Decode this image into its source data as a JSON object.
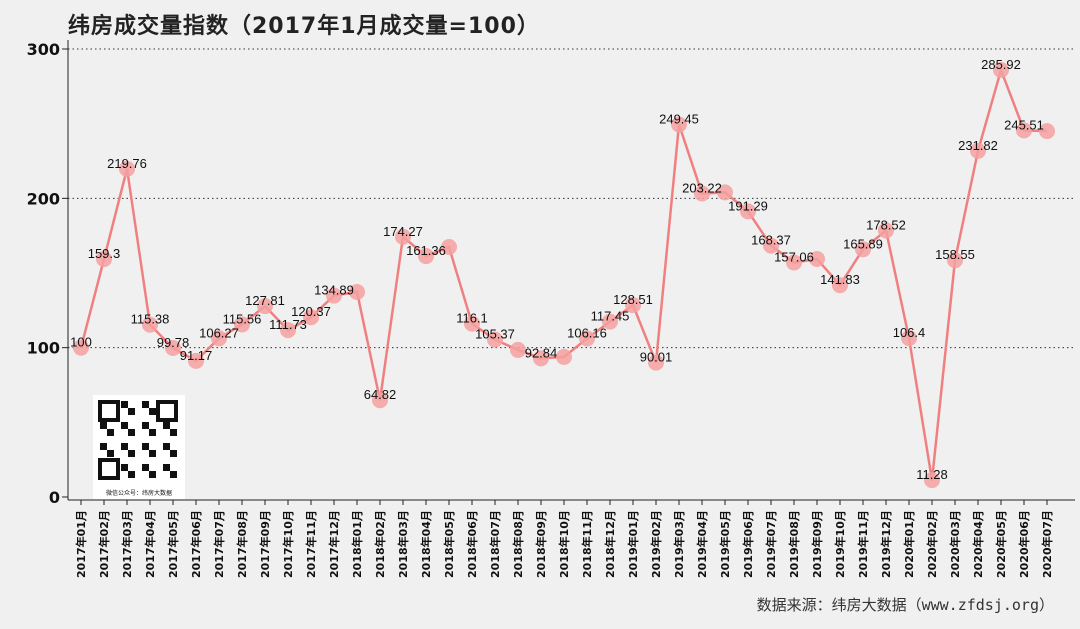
{
  "chart_data": {
    "type": "line",
    "title": "纬房成交量指数（2017年1月成交量=100）",
    "xlabel": "",
    "ylabel": "",
    "ylim": [
      0,
      300
    ],
    "yticks": [
      0,
      100,
      200,
      300
    ],
    "grid": "horizontal dotted",
    "line_color": "#f08080",
    "marker_color": "#f4a0a0",
    "categories": [
      "2017年01月",
      "2017年02月",
      "2017年03月",
      "2017年04月",
      "2017年05月",
      "2017年06月",
      "2017年07月",
      "2017年08月",
      "2017年09月",
      "2017年10月",
      "2017年11月",
      "2017年12月",
      "2018年01月",
      "2018年02月",
      "2018年03月",
      "2018年04月",
      "2018年05月",
      "2018年06月",
      "2018年07月",
      "2018年08月",
      "2018年09月",
      "2018年10月",
      "2018年11月",
      "2018年12月",
      "2019年01月",
      "2019年02月",
      "2019年03月",
      "2019年04月",
      "2019年05月",
      "2019年06月",
      "2019年07月",
      "2019年08月",
      "2019年09月",
      "2019年10月",
      "2019年11月",
      "2019年12月",
      "2020年01月",
      "2020年02月",
      "2020年03月",
      "2020年04月",
      "2020年05月",
      "2020年06月",
      "2020年07月"
    ],
    "values": [
      100,
      159.3,
      219.76,
      115.38,
      99.78,
      91.17,
      106.27,
      115.56,
      127.81,
      111.73,
      120.37,
      134.89,
      137.3,
      64.82,
      174.27,
      161.36,
      167.4,
      116.1,
      105.37,
      98.5,
      92.84,
      93.8,
      106.16,
      117.45,
      128.51,
      90.01,
      249.45,
      203.22,
      204,
      191.29,
      168.37,
      157.06,
      159.4,
      141.83,
      165.89,
      178.52,
      106.4,
      11.28,
      158.55,
      231.82,
      285.92,
      245.51,
      245
    ],
    "data_labels": [
      "100",
      "159.3",
      "219.76",
      "115.38",
      "99.78",
      "91.17",
      "106.27",
      "115.56",
      "127.81",
      "111.73",
      "120.37",
      "134.89",
      "",
      "64.82",
      "174.27",
      "161.36",
      "",
      "116.1",
      "105.37",
      "",
      "92.84",
      "",
      "106.16",
      "117.45",
      "128.51",
      "90.01",
      "249.45",
      "203.22",
      "",
      "191.29",
      "168.37",
      "157.06",
      "",
      "141.83",
      "165.89",
      "178.52",
      "106.4",
      "11.28",
      "158.55",
      "231.82",
      "285.92",
      "245.51",
      ""
    ]
  },
  "qr": {
    "caption": "微信公众号：纬房大数据"
  },
  "source": "数据来源：纬房大数据（www.zfdsj.org）"
}
